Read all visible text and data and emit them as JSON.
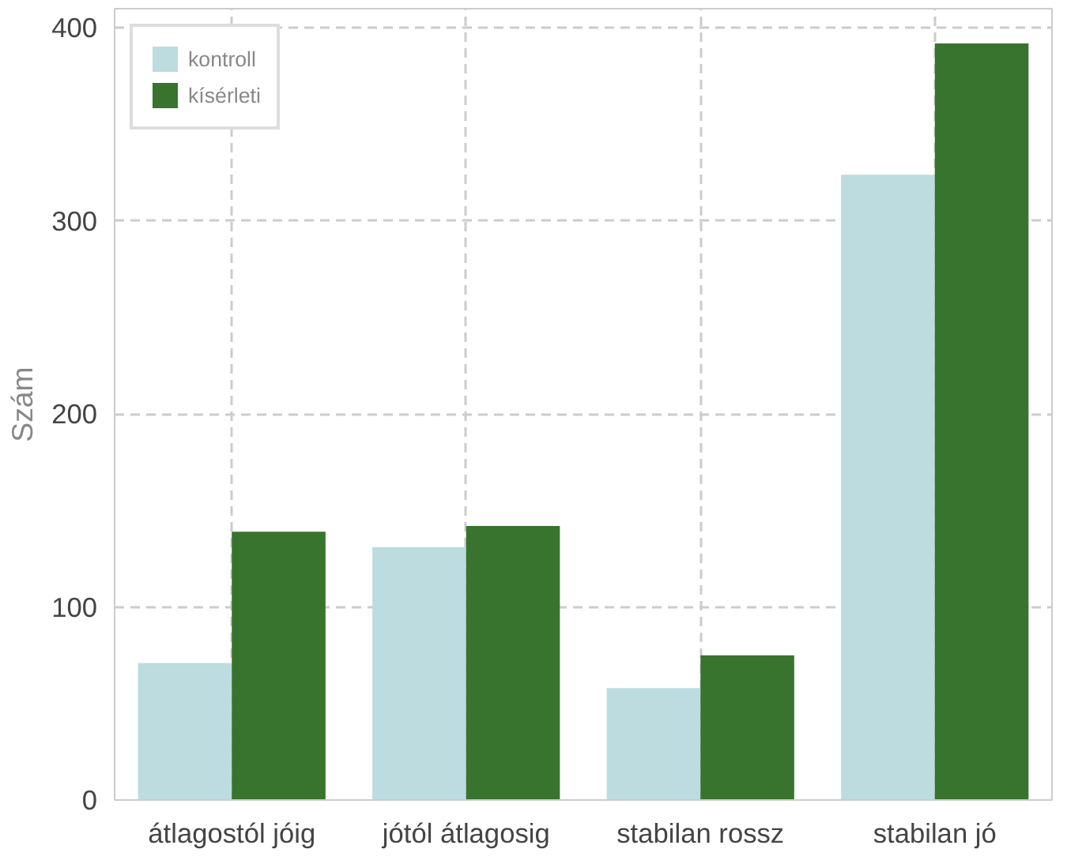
{
  "chart_data": {
    "type": "bar",
    "ylabel": "Szám",
    "categories": [
      "átlagostól jóig",
      "jótól átlagosig",
      "stabilan rossz",
      "stabilan jó"
    ],
    "series": [
      {
        "name": "kontroll",
        "color": "#bcdcdf",
        "values": [
          71,
          131,
          58,
          324
        ]
      },
      {
        "name": "kísérleti",
        "color": "#38742e",
        "values": [
          139,
          142,
          75,
          392
        ]
      }
    ],
    "ylim": [
      0,
      410
    ],
    "yticks": [
      0,
      100,
      200,
      300,
      400
    ],
    "grid": true,
    "legend": "top left"
  }
}
